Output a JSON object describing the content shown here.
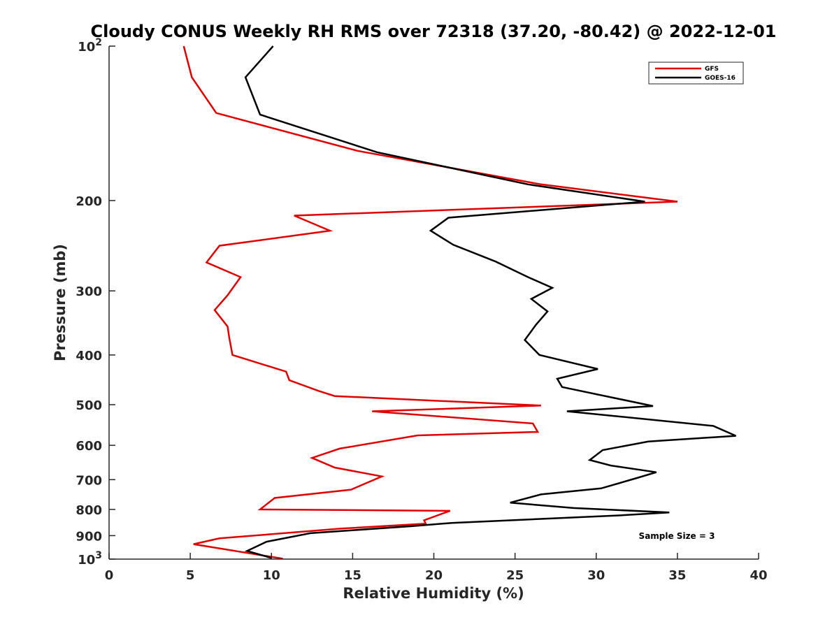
{
  "chart_data": {
    "type": "line",
    "title": "Cloudy CONUS Weekly RH RMS over 72318 (37.20, -80.42) @ 2022-12-01",
    "xlabel": "Relative Humidity (%)",
    "ylabel": "Pressure (mb)",
    "xlim": [
      0,
      40
    ],
    "ylim": [
      100,
      1000
    ],
    "yscale": "log",
    "y_reversed": true,
    "x_ticks": [
      "0",
      "5",
      "10",
      "15",
      "20",
      "25",
      "30",
      "35",
      "40"
    ],
    "y_ticks": [
      {
        "value": 100,
        "label": "10",
        "exp": "2"
      },
      {
        "value": 200,
        "label": "200",
        "exp": ""
      },
      {
        "value": 300,
        "label": "300",
        "exp": ""
      },
      {
        "value": 400,
        "label": "400",
        "exp": ""
      },
      {
        "value": 500,
        "label": "500",
        "exp": ""
      },
      {
        "value": 600,
        "label": "600",
        "exp": ""
      },
      {
        "value": 700,
        "label": "700",
        "exp": ""
      },
      {
        "value": 800,
        "label": "800",
        "exp": ""
      },
      {
        "value": 900,
        "label": "900",
        "exp": ""
      },
      {
        "value": 1000,
        "label": "10",
        "exp": "3"
      }
    ],
    "legend_position": "top-right",
    "annotation": "Sample Size = 3",
    "series": [
      {
        "name": "GFS",
        "color": "#e00000",
        "points": [
          [
            4.6,
            100
          ],
          [
            5.1,
            115
          ],
          [
            6.6,
            135
          ],
          [
            15.3,
            160
          ],
          [
            26.6,
            186
          ],
          [
            35.0,
            201
          ],
          [
            11.4,
            214
          ],
          [
            13.6,
            229
          ],
          [
            6.8,
            245
          ],
          [
            6.0,
            264
          ],
          [
            8.1,
            282
          ],
          [
            7.3,
            306
          ],
          [
            6.5,
            327
          ],
          [
            7.3,
            352
          ],
          [
            7.4,
            370
          ],
          [
            7.6,
            400
          ],
          [
            10.9,
            431
          ],
          [
            11.1,
            448
          ],
          [
            12.9,
            470
          ],
          [
            13.9,
            481
          ],
          [
            26.6,
            502
          ],
          [
            16.2,
            515
          ],
          [
            26.1,
            544
          ],
          [
            26.4,
            565
          ],
          [
            19.0,
            574
          ],
          [
            14.2,
            609
          ],
          [
            12.5,
            635
          ],
          [
            13.9,
            663
          ],
          [
            16.8,
            690
          ],
          [
            14.9,
            732
          ],
          [
            10.2,
            760
          ],
          [
            9.3,
            800
          ],
          [
            21.0,
            805
          ],
          [
            19.4,
            840
          ],
          [
            19.5,
            853
          ],
          [
            14.3,
            872
          ],
          [
            6.8,
            911
          ],
          [
            5.2,
            935
          ],
          [
            10.7,
            998
          ]
        ]
      },
      {
        "name": "GOES-16",
        "color": "#000000",
        "points": [
          [
            10.1,
            100
          ],
          [
            8.4,
            115
          ],
          [
            9.3,
            136
          ],
          [
            16.5,
            161
          ],
          [
            25.8,
            186
          ],
          [
            33.0,
            201
          ],
          [
            20.9,
            216
          ],
          [
            19.8,
            229
          ],
          [
            21.2,
            244
          ],
          [
            23.8,
            263
          ],
          [
            25.8,
            282
          ],
          [
            27.3,
            296
          ],
          [
            26.0,
            311
          ],
          [
            27.0,
            329
          ],
          [
            26.3,
            349
          ],
          [
            25.6,
            374
          ],
          [
            26.5,
            400
          ],
          [
            30.1,
            426
          ],
          [
            27.6,
            445
          ],
          [
            27.9,
            462
          ],
          [
            33.5,
            503
          ],
          [
            28.2,
            515
          ],
          [
            37.2,
            550
          ],
          [
            38.6,
            575
          ],
          [
            33.2,
            590
          ],
          [
            30.4,
            613
          ],
          [
            29.6,
            641
          ],
          [
            30.9,
            657
          ],
          [
            33.7,
            677
          ],
          [
            32.5,
            695
          ],
          [
            30.3,
            728
          ],
          [
            26.6,
            748
          ],
          [
            24.7,
            776
          ],
          [
            28.6,
            795
          ],
          [
            34.5,
            811
          ],
          [
            31.4,
            822
          ],
          [
            21.1,
            850
          ],
          [
            18.7,
            862
          ],
          [
            12.4,
            890
          ],
          [
            9.7,
            925
          ],
          [
            8.5,
            964
          ],
          [
            10.0,
            995
          ]
        ]
      }
    ]
  }
}
